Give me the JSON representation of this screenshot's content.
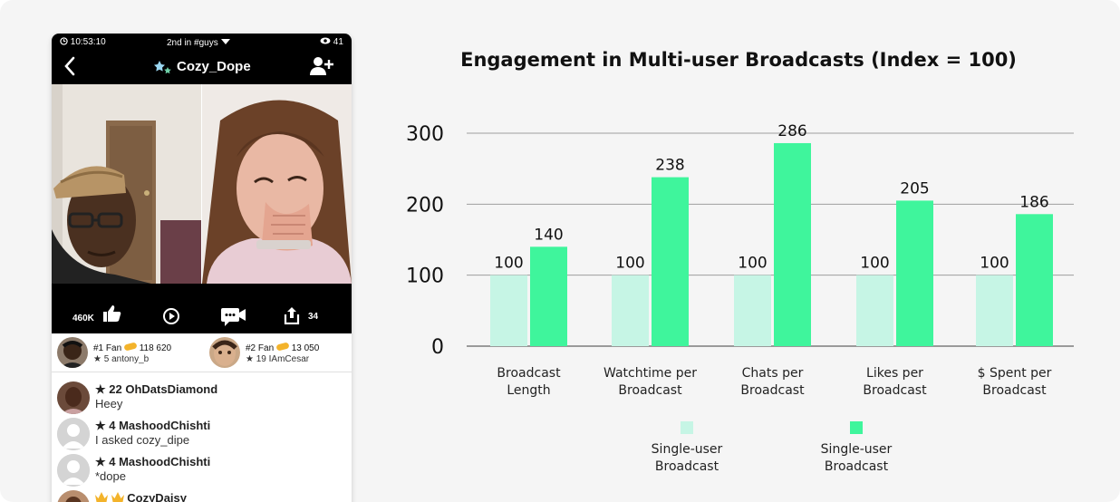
{
  "phone": {
    "status": {
      "time": "10:53:10",
      "rank": "2nd in #guys",
      "viewers": "41"
    },
    "broadcaster": "Cozy_Dope",
    "actions": {
      "likes": "460K",
      "shares": "34"
    },
    "fans": [
      {
        "rank": "#1 Fan",
        "coins": "118 620",
        "level": "★ 5 antony_b"
      },
      {
        "rank": "#2 Fan",
        "coins": "13 050",
        "level": "★ 19 IAmCesar"
      }
    ],
    "messages": [
      {
        "user": "★ 22 OhDatsDiamond",
        "text": "Heey"
      },
      {
        "user": "★ 4 MashoodChishti",
        "text": "I asked cozy_dipe"
      },
      {
        "user": "★ 4 MashoodChishti",
        "text": "*dope"
      },
      {
        "user": "CozyDaisy",
        "text": ""
      }
    ],
    "icons": [
      "clock-icon",
      "chevron-down-icon",
      "eye-icon",
      "back-arrow-icon",
      "add-user-icon",
      "thumbs-up-icon",
      "replay-icon",
      "camera-chat-icon",
      "share-icon",
      "coin-icon",
      "crown-icon"
    ]
  },
  "chart_data": {
    "type": "bar",
    "title": "Engagement in Multi-user Broadcasts (Index = 100)",
    "categories": [
      [
        "Broadcast",
        "Length"
      ],
      [
        "Watchtime per",
        "Broadcast"
      ],
      [
        "Chats per",
        "Broadcast"
      ],
      [
        "Likes per",
        "Broadcast"
      ],
      [
        "$ Spent per",
        "Broadcast"
      ]
    ],
    "series": [
      {
        "name": "Single-user Broadcast",
        "values": [
          100,
          100,
          100,
          100,
          100
        ],
        "color": "#c6f5e5"
      },
      {
        "name": "Single-user Broadcast",
        "values": [
          140,
          238,
          286,
          205,
          186
        ],
        "color": "#3ff59c"
      }
    ],
    "yticks": [
      0,
      100,
      200,
      300
    ],
    "ylim": [
      0,
      300
    ],
    "grid": true,
    "legend": [
      "Single-user Broadcast",
      "Single-user Broadcast"
    ],
    "legend_position": "bottom"
  }
}
